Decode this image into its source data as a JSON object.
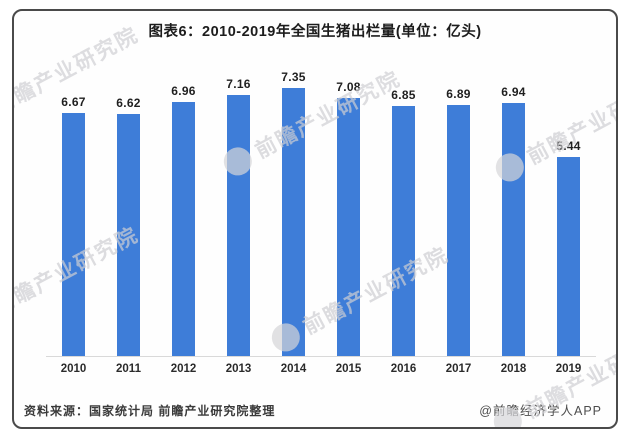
{
  "title": "图表6：2010-2019年全国生猪出栏量(单位：亿头)",
  "chart_data": {
    "type": "bar",
    "title": "图表6：2010-2019年全国生猪出栏量(单位：亿头)",
    "unit": "亿头",
    "categories": [
      "2010",
      "2011",
      "2012",
      "2013",
      "2014",
      "2015",
      "2016",
      "2017",
      "2018",
      "2019"
    ],
    "values": [
      6.67,
      6.62,
      6.96,
      7.16,
      7.35,
      7.08,
      6.85,
      6.89,
      6.94,
      5.44
    ],
    "ylim": [
      0,
      8
    ],
    "grid": false,
    "legend_position": "none",
    "bar_color": "#3e7dd8",
    "value_labels_shown": true,
    "value_label_decimals": 2
  },
  "footer": {
    "source": "资料来源：国家统计局 前瞻产业研究院整理",
    "credit": "@前瞻经济学人APP"
  },
  "watermark": {
    "text": "前瞻产业研究院"
  },
  "colors": {
    "bar": "#3e7dd8",
    "frame_border": "#4a4a4a",
    "axis_line": "#d9d9d9",
    "watermark": "#cfcfd3"
  }
}
